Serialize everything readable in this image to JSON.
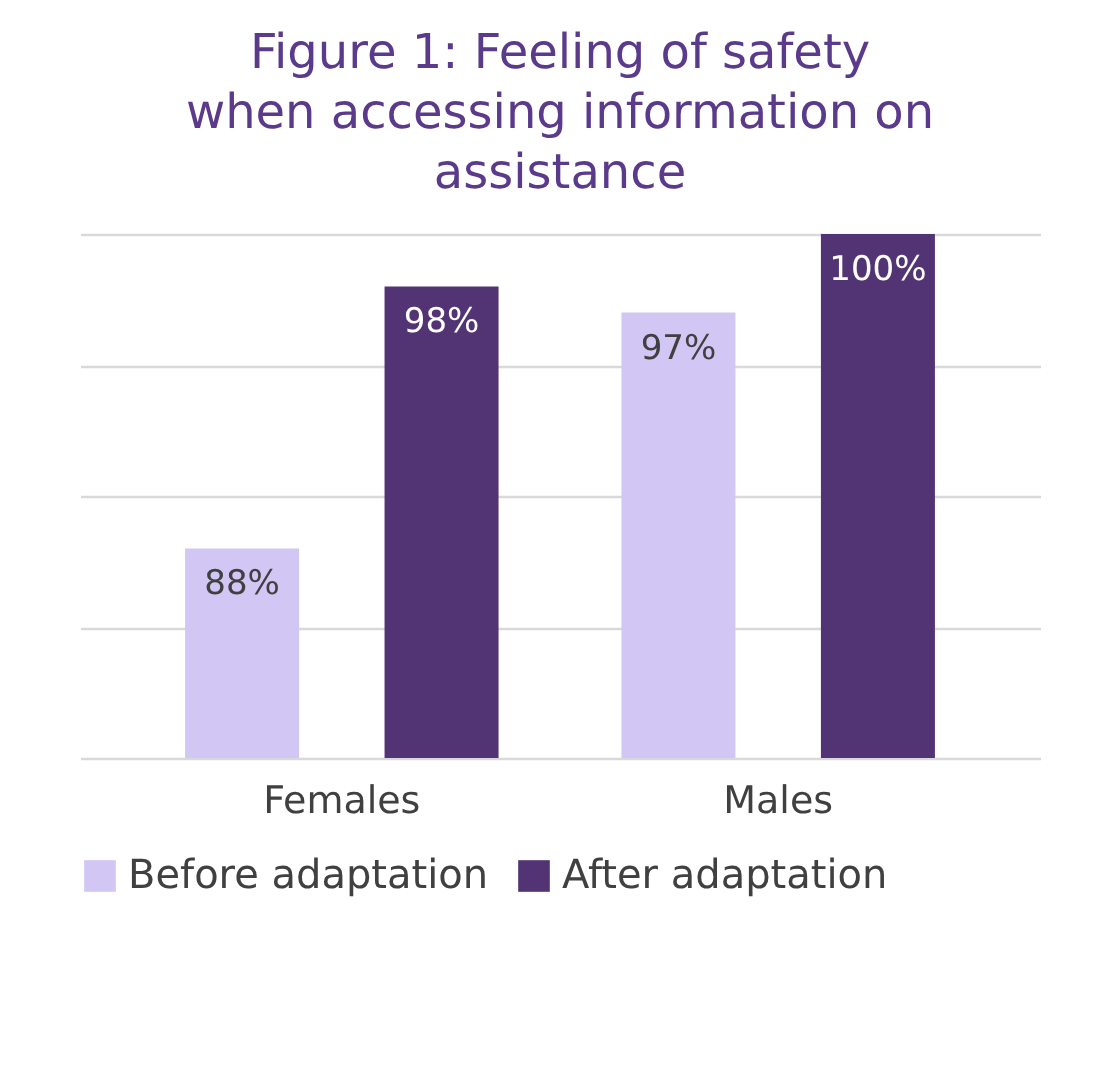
{
  "chart_data": {
    "type": "bar",
    "title": "Figure 1: Feeling of safety when accessing information on assistance",
    "categories": [
      "Females",
      "Males"
    ],
    "series": [
      {
        "name": "Before adaptation",
        "color": "#d2c6f5",
        "values": [
          88,
          97
        ],
        "value_labels": [
          "88%",
          "97%"
        ]
      },
      {
        "name": "After adaptation",
        "color": "#523373",
        "values": [
          98,
          100
        ],
        "value_labels": [
          "98%",
          "100%"
        ]
      }
    ],
    "ylim": [
      80,
      100
    ],
    "yticks": [
      {
        "value": 80,
        "label": null
      },
      {
        "value": 85,
        "label": null
      },
      {
        "value": 90,
        "label": null
      },
      {
        "value": 95,
        "label": null
      },
      {
        "value": 100,
        "label": null
      }
    ],
    "tick_labels": "x",
    "grid": "y",
    "legend": "bottom"
  }
}
